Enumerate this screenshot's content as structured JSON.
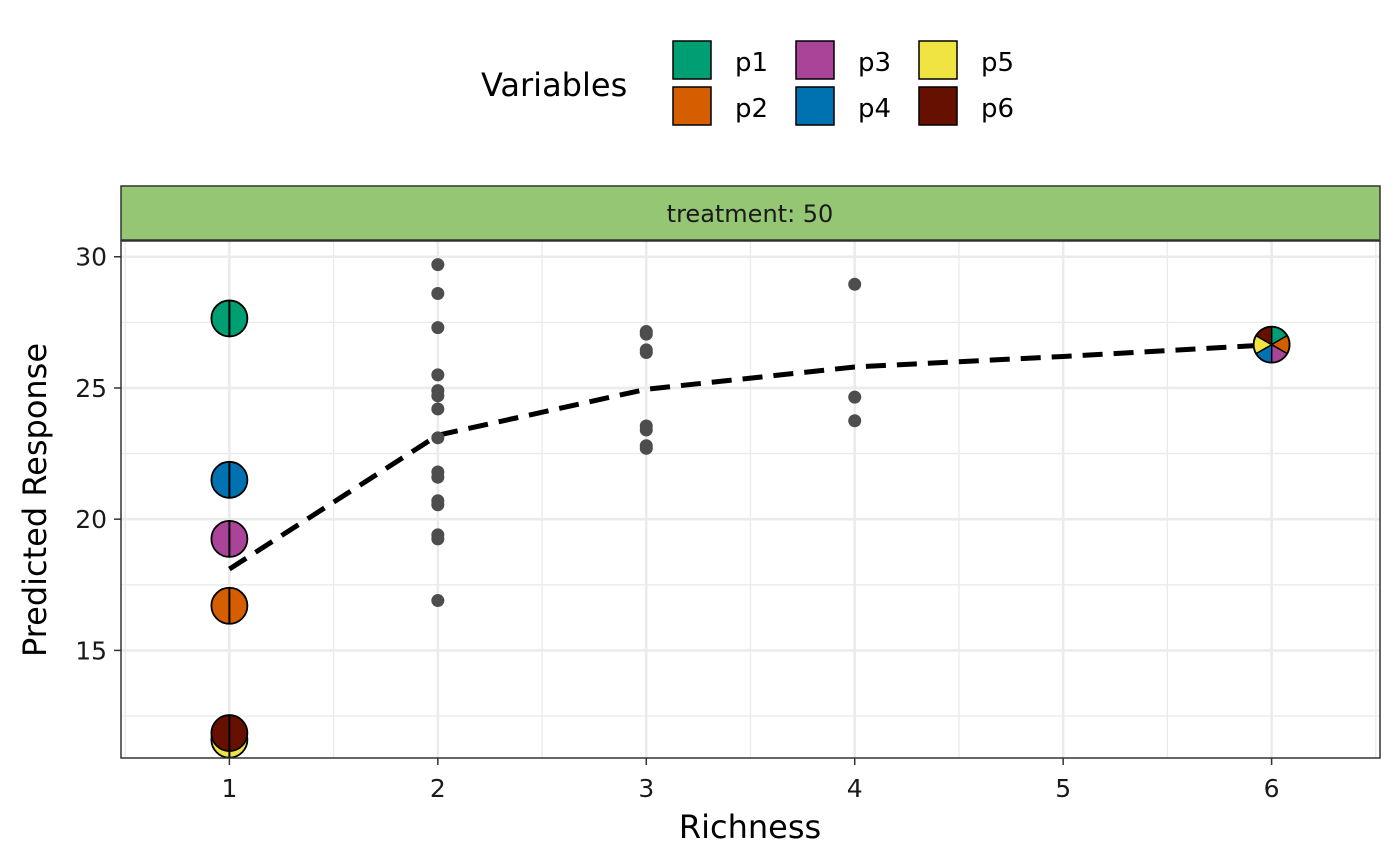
{
  "chart_data": {
    "type": "scatter",
    "facet_label": "treatment: 50",
    "xlabel": "Richness",
    "ylabel": "Predicted Response",
    "xlim": [
      0.48,
      6.52
    ],
    "ylim": [
      10.9,
      30.6
    ],
    "x_ticks": [
      1,
      2,
      3,
      4,
      5,
      6
    ],
    "y_ticks": [
      15,
      20,
      25,
      30
    ],
    "grid": true,
    "legend": {
      "title": "Variables",
      "position": "top",
      "entries": [
        {
          "label": "p1",
          "color": "#009E73"
        },
        {
          "label": "p2",
          "color": "#D55E00"
        },
        {
          "label": "p3",
          "color": "#AA4499"
        },
        {
          "label": "p4",
          "color": "#0072B2"
        },
        {
          "label": "p5",
          "color": "#F0E442"
        },
        {
          "label": "p6",
          "color": "#661100"
        }
      ]
    },
    "monoculture_points": [
      {
        "x": 1,
        "y": 27.65,
        "variable": "p1"
      },
      {
        "x": 1,
        "y": 16.7,
        "variable": "p2"
      },
      {
        "x": 1,
        "y": 19.25,
        "variable": "p3"
      },
      {
        "x": 1,
        "y": 21.5,
        "variable": "p4"
      },
      {
        "x": 1,
        "y": 11.6,
        "variable": "p5"
      },
      {
        "x": 1,
        "y": 11.85,
        "variable": "p6"
      }
    ],
    "mixture_points": [
      {
        "x": 2,
        "y": 29.7
      },
      {
        "x": 2,
        "y": 28.6
      },
      {
        "x": 2,
        "y": 27.3
      },
      {
        "x": 2,
        "y": 25.5
      },
      {
        "x": 2,
        "y": 24.9
      },
      {
        "x": 2,
        "y": 24.7
      },
      {
        "x": 2,
        "y": 24.2
      },
      {
        "x": 2,
        "y": 23.1
      },
      {
        "x": 2,
        "y": 21.8
      },
      {
        "x": 2,
        "y": 21.6
      },
      {
        "x": 2,
        "y": 20.7
      },
      {
        "x": 2,
        "y": 20.55
      },
      {
        "x": 2,
        "y": 19.4
      },
      {
        "x": 2,
        "y": 19.25
      },
      {
        "x": 2,
        "y": 16.9
      },
      {
        "x": 3,
        "y": 27.15
      },
      {
        "x": 3,
        "y": 27.05
      },
      {
        "x": 3,
        "y": 26.45
      },
      {
        "x": 3,
        "y": 26.35
      },
      {
        "x": 3,
        "y": 23.55
      },
      {
        "x": 3,
        "y": 23.4
      },
      {
        "x": 3,
        "y": 22.8
      },
      {
        "x": 3,
        "y": 22.7
      },
      {
        "x": 4,
        "y": 28.95
      },
      {
        "x": 4,
        "y": 24.65
      },
      {
        "x": 4,
        "y": 23.75
      }
    ],
    "mean_line": {
      "style": "dashed",
      "x": [
        1,
        2,
        3,
        4,
        5,
        6
      ],
      "y": [
        18.1,
        23.2,
        24.95,
        25.8,
        26.2,
        26.65
      ]
    },
    "full_mixture_point": {
      "x": 6,
      "y": 26.65,
      "variables": [
        "p1",
        "p2",
        "p3",
        "p4",
        "p5",
        "p6"
      ]
    }
  }
}
